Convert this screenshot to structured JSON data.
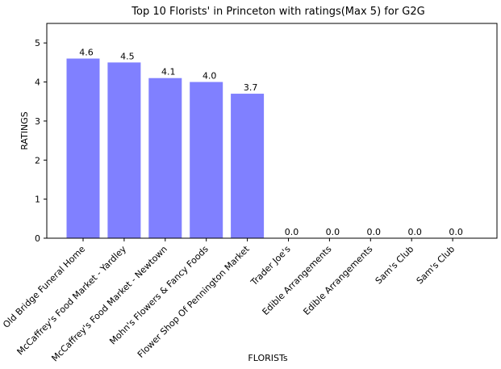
{
  "chart_data": {
    "type": "bar",
    "title": "Top 10 Florists' in Princeton with ratings(Max 5) for G2G",
    "xlabel": "FLORISTs",
    "ylabel": "RATINGS",
    "ylim": [
      0,
      5.5
    ],
    "yticks": [
      0,
      1,
      2,
      3,
      4,
      5
    ],
    "categories": [
      "Old Bridge Funeral Home",
      "McCaffrey's Food Market - Yardley",
      "McCaffrey's Food Market - Newtown",
      "Mohn's Flowers & Fancy Foods",
      "Flower Shop Of Pennington Market",
      "Trader Joe's",
      "Edible Arrangements",
      "Edible Arrangements",
      "Sam's Club",
      "Sam's Club"
    ],
    "values": [
      4.6,
      4.5,
      4.1,
      4.0,
      3.7,
      0.0,
      0.0,
      0.0,
      0.0,
      0.0
    ],
    "data_labels": [
      "4.6",
      "4.5",
      "4.1",
      "4.0",
      "3.7",
      "0.0",
      "0.0",
      "0.0",
      "0.0",
      "0.0"
    ],
    "bar_color": "#8080ff",
    "grid": false,
    "legend": "none"
  }
}
